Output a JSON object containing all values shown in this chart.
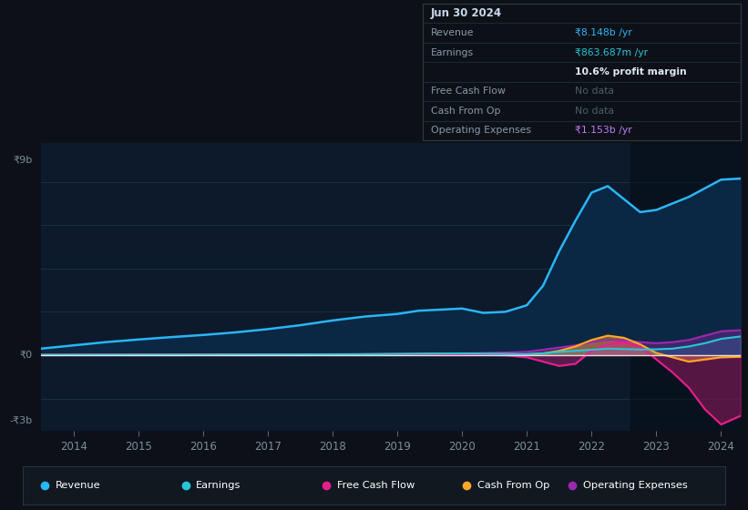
{
  "bg_color": "#0d1117",
  "chart_bg": "#0d1a2b",
  "grid_color": "#1a3a4a",
  "muted_color": "#7a8f9f",
  "ylabel_top": "₹9b",
  "ylabel_mid": "₹0",
  "ylabel_bot": "-₹3b",
  "ylim": [
    -3500000000.0,
    9800000000.0
  ],
  "years": [
    2013.5,
    2014.0,
    2014.5,
    2015.0,
    2015.5,
    2016.0,
    2016.5,
    2017.0,
    2017.5,
    2018.0,
    2018.5,
    2019.0,
    2019.33,
    2019.67,
    2020.0,
    2020.33,
    2020.67,
    2021.0,
    2021.25,
    2021.5,
    2021.75,
    2022.0,
    2022.25,
    2022.5,
    2022.75,
    2023.0,
    2023.25,
    2023.5,
    2023.75,
    2024.0,
    2024.3
  ],
  "revenue": [
    300000000.0,
    450000000.0,
    600000000.0,
    720000000.0,
    830000000.0,
    930000000.0,
    1050000000.0,
    1200000000.0,
    1380000000.0,
    1600000000.0,
    1780000000.0,
    1900000000.0,
    2050000000.0,
    2100000000.0,
    2150000000.0,
    1950000000.0,
    2000000000.0,
    2300000000.0,
    3200000000.0,
    4800000000.0,
    6200000000.0,
    7500000000.0,
    7800000000.0,
    7200000000.0,
    6600000000.0,
    6700000000.0,
    7000000000.0,
    7300000000.0,
    7700000000.0,
    8100000000.0,
    8148000000.0
  ],
  "earnings": [
    5000000.0,
    8000000.0,
    10000000.0,
    12000000.0,
    15000000.0,
    18000000.0,
    20000000.0,
    25000000.0,
    30000000.0,
    35000000.0,
    40000000.0,
    50000000.0,
    60000000.0,
    70000000.0,
    80000000.0,
    60000000.0,
    50000000.0,
    40000000.0,
    80000000.0,
    150000000.0,
    200000000.0,
    250000000.0,
    300000000.0,
    280000000.0,
    260000000.0,
    270000000.0,
    300000000.0,
    400000000.0,
    550000000.0,
    750000000.0,
    863000000.0
  ],
  "free_cash_flow": [
    0,
    5000000.0,
    5000000.0,
    8000000.0,
    8000000.0,
    10000000.0,
    10000000.0,
    10000000.0,
    10000000.0,
    12000000.0,
    12000000.0,
    15000000.0,
    15000000.0,
    15000000.0,
    10000000.0,
    5000000.0,
    -10000000.0,
    -100000000.0,
    -300000000.0,
    -500000000.0,
    -400000000.0,
    200000000.0,
    500000000.0,
    600000000.0,
    400000000.0,
    -200000000.0,
    -800000000.0,
    -1500000000.0,
    -2500000000.0,
    -3200000000.0,
    -2800000000.0
  ],
  "cash_from_op": [
    10000000.0,
    15000000.0,
    18000000.0,
    20000000.0,
    22000000.0,
    25000000.0,
    28000000.0,
    30000000.0,
    35000000.0,
    40000000.0,
    45000000.0,
    50000000.0,
    55000000.0,
    60000000.0,
    60000000.0,
    55000000.0,
    50000000.0,
    40000000.0,
    80000000.0,
    200000000.0,
    400000000.0,
    700000000.0,
    900000000.0,
    800000000.0,
    500000000.0,
    100000000.0,
    -100000000.0,
    -300000000.0,
    -200000000.0,
    -100000000.0,
    -80000000.0
  ],
  "op_expenses": [
    10000000.0,
    12000000.0,
    15000000.0,
    18000000.0,
    20000000.0,
    22000000.0,
    25000000.0,
    28000000.0,
    30000000.0,
    35000000.0,
    40000000.0,
    50000000.0,
    60000000.0,
    70000000.0,
    80000000.0,
    100000000.0,
    120000000.0,
    150000000.0,
    250000000.0,
    350000000.0,
    450000000.0,
    600000000.0,
    700000000.0,
    680000000.0,
    600000000.0,
    550000000.0,
    600000000.0,
    700000000.0,
    900000000.0,
    1100000000.0,
    1153000000.0
  ],
  "revenue_color": "#29b6f6",
  "revenue_fill": "#0a2744",
  "earnings_color": "#26c6da",
  "fcf_color": "#e91e8c",
  "cfo_color": "#ffa726",
  "opex_color": "#9c27b0",
  "legend_items": [
    "Revenue",
    "Earnings",
    "Free Cash Flow",
    "Cash From Op",
    "Operating Expenses"
  ],
  "legend_colors": [
    "#29b6f6",
    "#26c6da",
    "#e91e8c",
    "#ffa726",
    "#9c27b0"
  ],
  "x_ticks": [
    2014,
    2015,
    2016,
    2017,
    2018,
    2019,
    2020,
    2021,
    2022,
    2023,
    2024
  ],
  "dark_overlay_start": 2022.6
}
